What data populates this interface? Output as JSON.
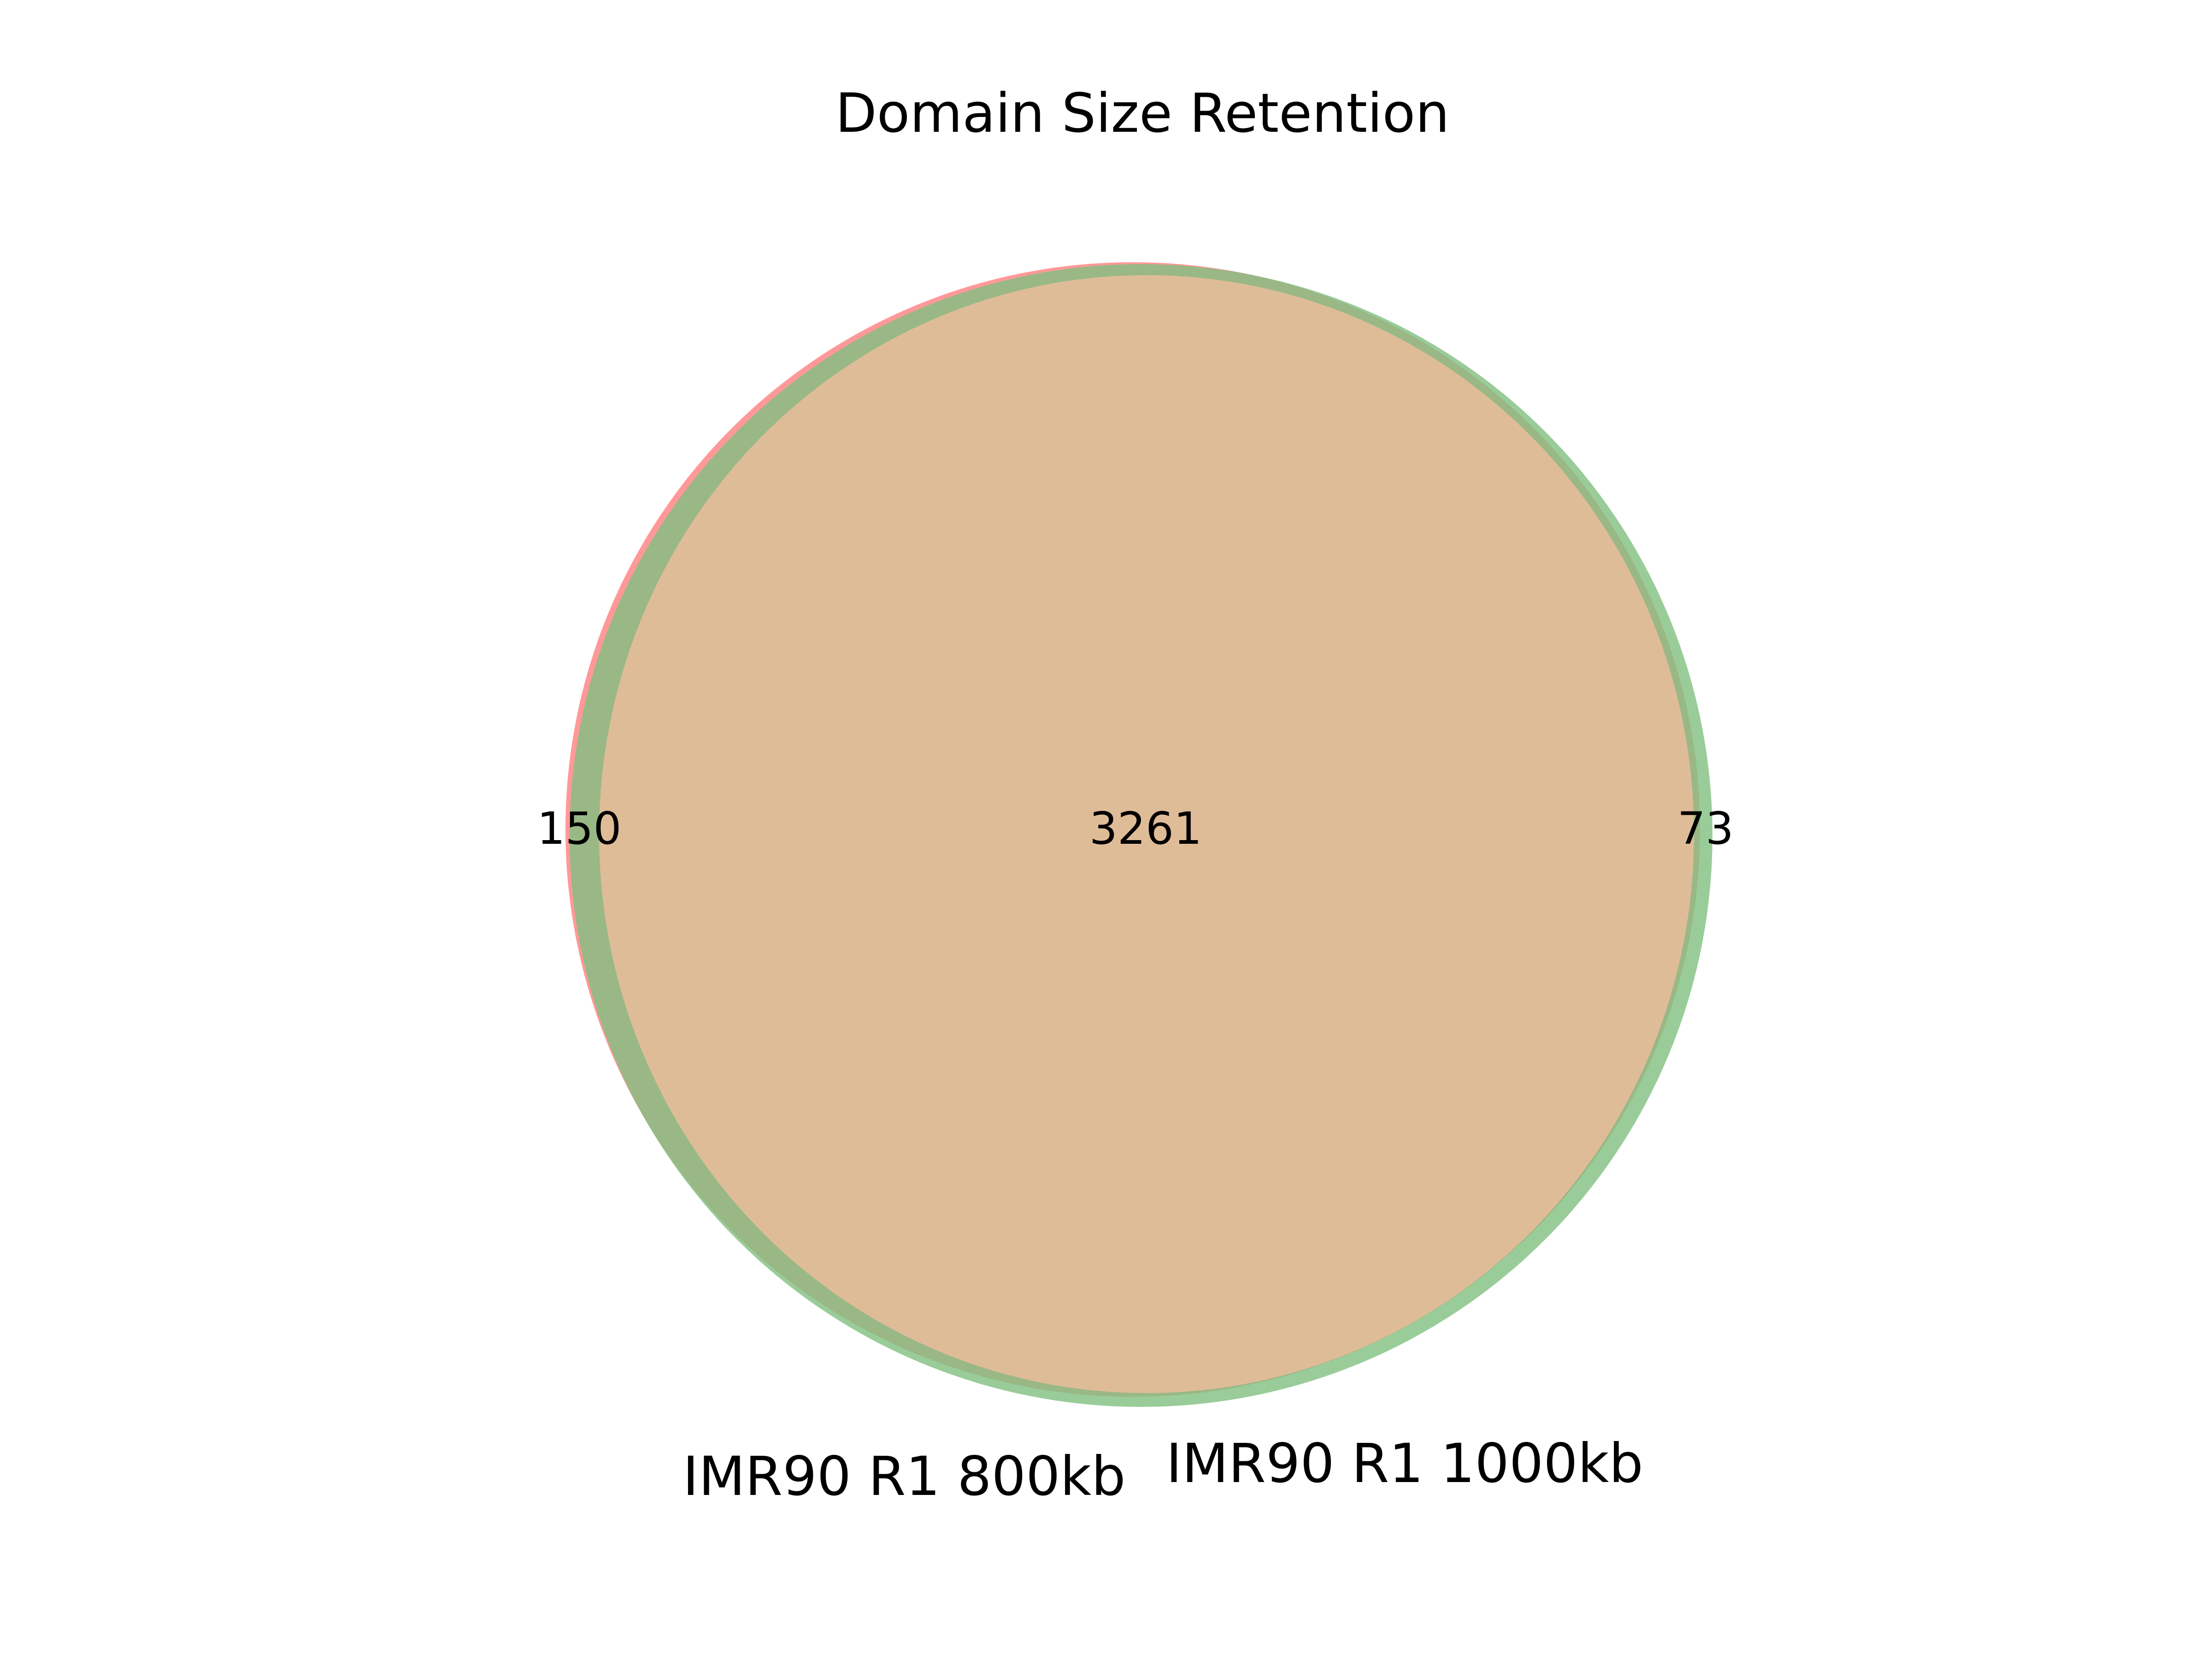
{
  "title": "Domain Size Retention",
  "sets": [
    {
      "name": "IMR90 R1 800kb",
      "only_count": "150",
      "color": "#ff7f7f"
    },
    {
      "name": "IMR90 R1 1000kb",
      "only_count": "73",
      "color": "#7fbf7f"
    }
  ],
  "intersection": {
    "count": "3261",
    "color": "#dfbc98"
  },
  "chart_data": {
    "type": "venn",
    "title": "Domain Size Retention",
    "sets": [
      "IMR90 R1 800kb",
      "IMR90 R1 1000kb"
    ],
    "regions": [
      {
        "sets": [
          "IMR90 R1 800kb"
        ],
        "value": 150
      },
      {
        "sets": [
          "IMR90 R1 800kb",
          "IMR90 R1 1000kb"
        ],
        "value": 3261
      },
      {
        "sets": [
          "IMR90 R1 1000kb"
        ],
        "value": 73
      }
    ]
  }
}
